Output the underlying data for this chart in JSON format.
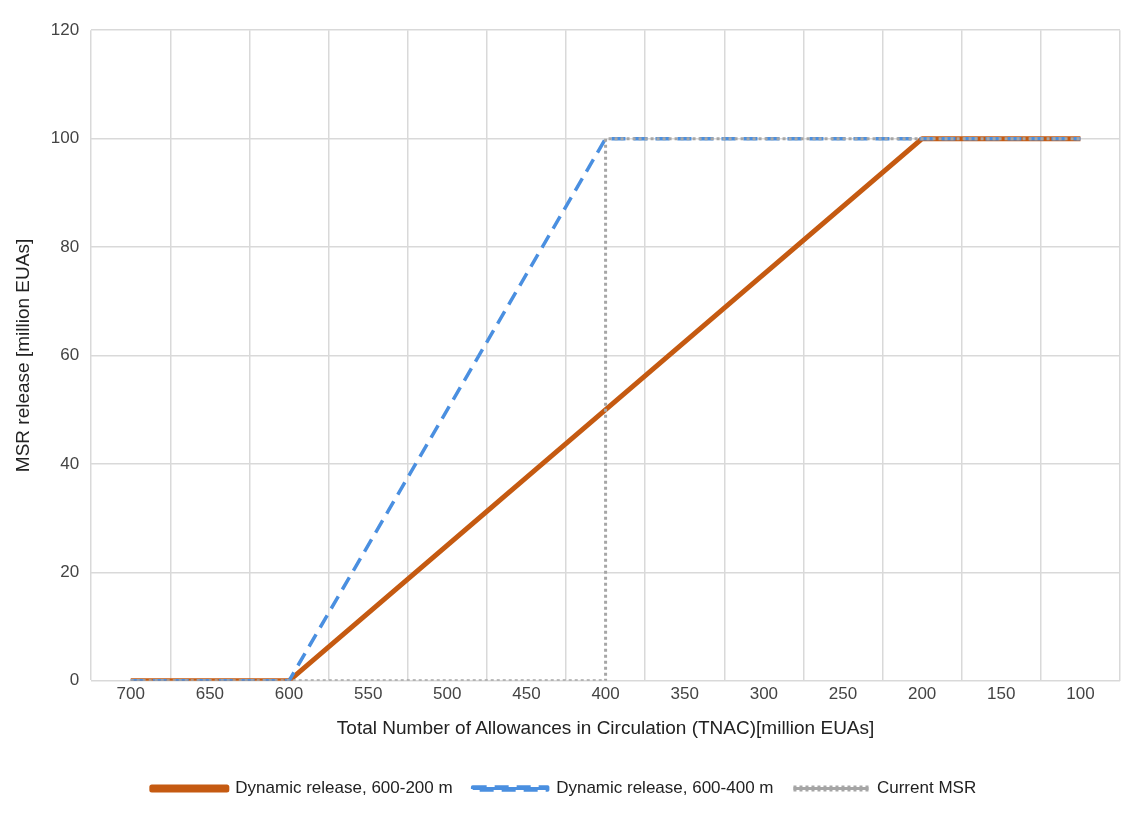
{
  "chart_data": {
    "type": "line",
    "xlabel": "Total Number of Allowances in Circulation (TNAC)[million EUAs]",
    "ylabel": "MSR release [million EUAs]",
    "xlim": [
      725,
      75
    ],
    "xticks": [
      {
        "value": 725,
        "label": null
      },
      700,
      {
        "value": 675,
        "label": null
      },
      650,
      {
        "value": 625,
        "label": null
      },
      600,
      {
        "value": 575,
        "label": null
      },
      550,
      {
        "value": 525,
        "label": null
      },
      500,
      {
        "value": 475,
        "label": null
      },
      450,
      {
        "value": 425,
        "label": null
      },
      400,
      {
        "value": 375,
        "label": null
      },
      350,
      {
        "value": 325,
        "label": null
      },
      300,
      {
        "value": 275,
        "label": null
      },
      250,
      {
        "value": 225,
        "label": null
      },
      200,
      {
        "value": 175,
        "label": null
      },
      150,
      {
        "value": 125,
        "label": null
      },
      100,
      {
        "value": 75,
        "label": null
      }
    ],
    "ylim": [
      0,
      120
    ],
    "yticks": [
      0,
      20,
      40,
      60,
      80,
      100,
      120
    ],
    "grid": true,
    "legend": "bottom",
    "marker": "none",
    "series": [
      {
        "name": "Dynamic release, 600-200 m",
        "color": "#c55a11",
        "line_style": "solid",
        "x": [
          700,
          600,
          200,
          100
        ],
        "values": [
          0,
          0,
          100,
          100
        ]
      },
      {
        "name": "Dynamic release, 600-400 m",
        "color": "#4a8fe0",
        "line_style": "dashed",
        "x": [
          700,
          600,
          400,
          100
        ],
        "values": [
          0,
          0,
          100,
          100
        ]
      },
      {
        "name": "Current MSR",
        "color": "#a6a6a6",
        "line_style": "dotted",
        "x": [
          700,
          400,
          400,
          100
        ],
        "values": [
          0,
          0,
          100,
          100
        ]
      }
    ]
  }
}
